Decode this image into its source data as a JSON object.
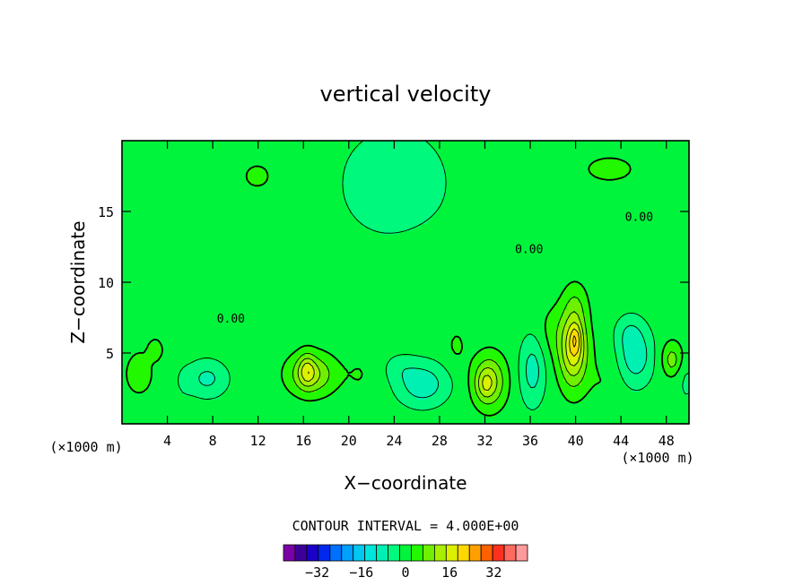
{
  "chart_data": {
    "type": "heatmap",
    "title": "vertical velocity",
    "xlabel": "X−coordinate",
    "ylabel": "Z−coordinate",
    "x_unit": "(×1000 m)",
    "z_unit": "(×1000 m)",
    "xlim": [
      0,
      50
    ],
    "ylim": [
      0,
      20
    ],
    "x_ticks": [
      {
        "value": 4,
        "label": "4"
      },
      {
        "value": 8,
        "label": "8"
      },
      {
        "value": 12,
        "label": "12"
      },
      {
        "value": 16,
        "label": "16"
      },
      {
        "value": 20,
        "label": "20"
      },
      {
        "value": 24,
        "label": "24"
      },
      {
        "value": 28,
        "label": "28"
      },
      {
        "value": 32,
        "label": "32"
      },
      {
        "value": 36,
        "label": "36"
      },
      {
        "value": 40,
        "label": "40"
      },
      {
        "value": 44,
        "label": "44"
      },
      {
        "value": 48,
        "label": "48"
      }
    ],
    "y_ticks": [
      {
        "value": 5,
        "label": "5"
      },
      {
        "value": 10,
        "label": "10"
      },
      {
        "value": 15,
        "label": "15"
      }
    ],
    "contour_interval_text": "CONTOUR INTERVAL = 4.000E+00",
    "contour_interval": 4,
    "contour_labels": [
      {
        "x": 9.6,
        "z": 7.4,
        "text": "0.00"
      },
      {
        "x": 35.9,
        "z": 12.3,
        "text": "0.00"
      },
      {
        "x": 45.6,
        "z": 14.6,
        "text": "0.00"
      }
    ],
    "colorbar": {
      "levels": [
        -40,
        -36,
        -32,
        -28,
        -24,
        -20,
        -16,
        -12,
        -8,
        -4,
        0,
        4,
        8,
        12,
        16,
        20,
        24,
        28,
        32,
        36,
        40
      ],
      "colors": [
        "#7a00a8",
        "#3c0098",
        "#1a00c8",
        "#0028ee",
        "#0070ff",
        "#00a0ff",
        "#00c8f0",
        "#00e6dc",
        "#00f0b4",
        "#00f87c",
        "#00f43c",
        "#22f800",
        "#70f000",
        "#a8f000",
        "#dcf000",
        "#ffd800",
        "#ffa000",
        "#ff6000",
        "#ff3020",
        "#ff6a60",
        "#ff9a9a"
      ],
      "tick_labels": [
        {
          "value": -32,
          "label": "−32"
        },
        {
          "value": -16,
          "label": "−16"
        },
        {
          "value": 0,
          "label": "0"
        },
        {
          "value": 16,
          "label": "16"
        },
        {
          "value": 32,
          "label": "32"
        }
      ]
    },
    "background_value": -2,
    "features": [
      {
        "x": 24,
        "z": 17,
        "sx": 5.5,
        "sz": 4.5,
        "amp": -4
      },
      {
        "x": 12,
        "z": 17.5,
        "sx": 3.5,
        "sz": 2.5,
        "amp": 2.2
      },
      {
        "x": 43,
        "z": 18,
        "sx": 6,
        "sz": 2.5,
        "amp": 2.2
      },
      {
        "x": 3,
        "z": 14,
        "sx": 3.5,
        "sz": 2.5,
        "amp": 0.6
      },
      {
        "x": 29,
        "z": 12,
        "sx": 5,
        "sz": 2,
        "amp": 0.8
      },
      {
        "x": 2,
        "z": 7.5,
        "sx": 2.5,
        "sz": 2,
        "amp": 1.5
      },
      {
        "x": 1.5,
        "z": 3.5,
        "sx": 1.5,
        "sz": 1.8,
        "amp": 3.4
      },
      {
        "x": 3,
        "z": 5.2,
        "sx": 0.6,
        "sz": 0.7,
        "amp": 3.5
      },
      {
        "x": 7.5,
        "z": 3.2,
        "sx": 1.8,
        "sz": 1.3,
        "amp": -7
      },
      {
        "x": 5.5,
        "z": 3,
        "sx": 0.7,
        "sz": 1,
        "amp": -2
      },
      {
        "x": 11,
        "z": 5.8,
        "sx": 2,
        "sz": 1.2,
        "amp": 1.5
      },
      {
        "x": 16.7,
        "z": 3.5,
        "sx": 2,
        "sz": 1.4,
        "amp": 11
      },
      {
        "x": 16.3,
        "z": 3.8,
        "sx": 0.7,
        "sz": 1.1,
        "amp": 8
      },
      {
        "x": 21,
        "z": 3.5,
        "sx": 1.5,
        "sz": 1.8,
        "amp": 2
      },
      {
        "x": 26.5,
        "z": 2.8,
        "sx": 2.2,
        "sz": 1.5,
        "amp": -9
      },
      {
        "x": 24.5,
        "z": 4,
        "sx": 1.5,
        "sz": 1,
        "amp": -3
      },
      {
        "x": 29.5,
        "z": 5.5,
        "sx": 1,
        "sz": 1.5,
        "amp": 2.5
      },
      {
        "x": 32.4,
        "z": 3,
        "sx": 1.4,
        "sz": 1.8,
        "amp": 12
      },
      {
        "x": 32,
        "z": 2.8,
        "sx": 0.7,
        "sz": 1,
        "amp": 5
      },
      {
        "x": 36.2,
        "z": 3.8,
        "sx": 1.1,
        "sz": 2.4,
        "amp": -8
      },
      {
        "x": 38,
        "z": 6.5,
        "sx": 1.5,
        "sz": 2,
        "amp": 3
      },
      {
        "x": 39.8,
        "z": 5.3,
        "sx": 1.2,
        "sz": 2.6,
        "amp": 17
      },
      {
        "x": 40,
        "z": 6,
        "sx": 0.45,
        "sz": 1,
        "amp": 7
      },
      {
        "x": 40,
        "z": 8.5,
        "sx": 1,
        "sz": 1.5,
        "amp": 4
      },
      {
        "x": 42.5,
        "z": 3,
        "sx": 1.5,
        "sz": 2,
        "amp": 2
      },
      {
        "x": 45.3,
        "z": 4.8,
        "sx": 1.5,
        "sz": 2,
        "amp": -9
      },
      {
        "x": 44.7,
        "z": 6.5,
        "sx": 1.2,
        "sz": 1.2,
        "amp": -4
      },
      {
        "x": 48.5,
        "z": 4.6,
        "sx": 1,
        "sz": 1.3,
        "amp": 6
      },
      {
        "x": 48.5,
        "z": 4.5,
        "sx": 0.35,
        "sz": 0.5,
        "amp": 4
      },
      {
        "x": 49.8,
        "z": 3,
        "sx": 0.8,
        "sz": 1.5,
        "amp": -3
      }
    ]
  }
}
